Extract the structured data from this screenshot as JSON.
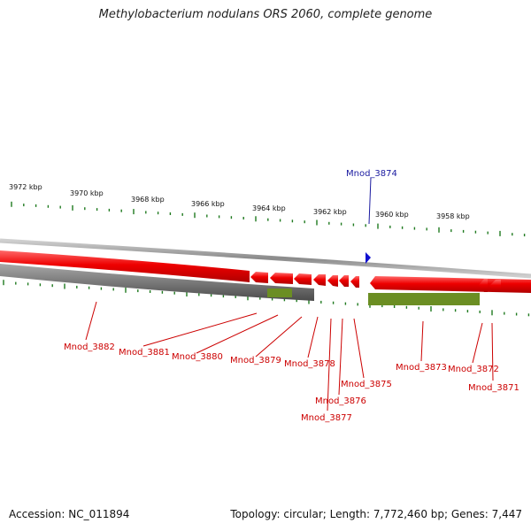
{
  "title": "Methylobacterium nodulans ORS 2060, complete genome",
  "footer": {
    "accession": "Accession: NC_011894",
    "summary": "Topology: circular; Length: 7,772,460 bp; Genes: 7,447"
  },
  "kbp_labels": [
    "3972 kbp",
    "3970 kbp",
    "3968 kbp",
    "3966 kbp",
    "3964 kbp",
    "3962 kbp",
    "3960 kbp",
    "3958 kbp"
  ],
  "forward_gene_label": "Mnod_3874",
  "gene_labels": [
    "Mnod_3882",
    "Mnod_3881",
    "Mnod_3880",
    "Mnod_3879",
    "Mnod_3878",
    "Mnod_3877",
    "Mnod_3876",
    "Mnod_3875",
    "Mnod_3873",
    "Mnod_3872",
    "Mnod_3871"
  ],
  "colors": {
    "reverse_gene": "#ee0000",
    "forward_gene": "#1010d0",
    "backbone": "#888888",
    "gc_track": "#5a5a5a",
    "rna_track": "#6b8e23",
    "ticks": "#1f7a1f",
    "label_red": "#cc0000",
    "label_blue": "#1a1aa0"
  }
}
